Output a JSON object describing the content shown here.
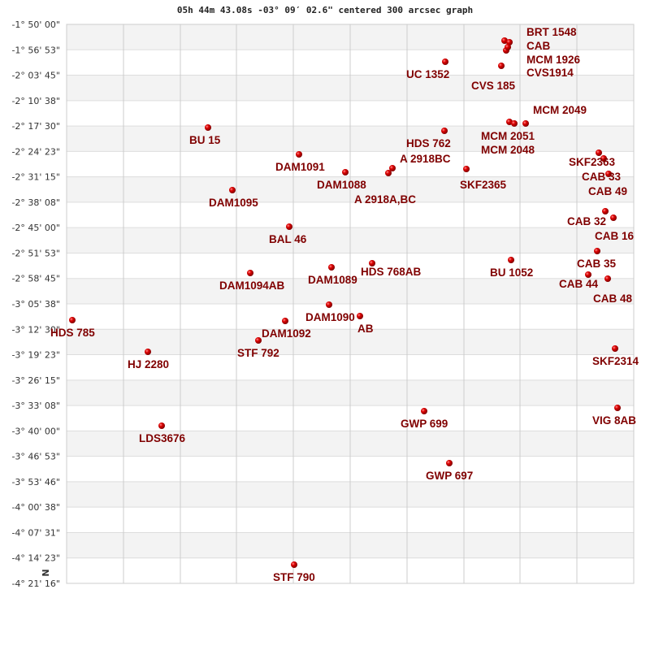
{
  "chart_data": {
    "type": "scatter",
    "title": "05h 44m 43.08s -03° 09′ 02.6\" centered 300 arcsec graph",
    "y_tick_labels": [
      "-1° 50' 00\"",
      "-1° 56' 53\"",
      "-2° 03' 45\"",
      "-2° 10' 38\"",
      "-2° 17' 30\"",
      "-2° 24' 23\"",
      "-2° 31' 15\"",
      "-2° 38' 08\"",
      "-2° 45' 00\"",
      "-2° 51' 53\"",
      "-2° 58' 45\"",
      "-3° 05' 38\"",
      "-3° 12' 30\"",
      "-3° 19' 23\"",
      "-3° 26' 15\"",
      "-3° 33' 08\"",
      "-3° 40' 00\"",
      "-3° 46' 53\"",
      "-3° 53' 46\"",
      "-4° 00' 38\"",
      "-4° 07' 31\"",
      "-4° 14' 23\"",
      "-4° 21' 16\""
    ],
    "compass_label": "N",
    "grid": true,
    "point_color": "#dd0000",
    "label_color": "#800000",
    "stars": [
      "BU  15",
      "DAM1091",
      "DAM1095",
      "BAL  46",
      "DAM1094AB",
      "DAM1089",
      "HDS 768AB",
      "DAM1090",
      "AB",
      "DAM1092",
      "STF 792",
      "HDS 785",
      "HJ 2280",
      "LDS3676",
      "STF 790",
      "GWP 699",
      "GWP 697",
      "UC 1352",
      "HDS 762",
      "SKF2365",
      "DAM1088",
      "A 2918A,BC",
      "A 2918BC",
      "BU 1052",
      "SKF2363",
      "CAB  33",
      "CAB  49",
      "CAB  32",
      "CAB  16",
      "CAB  35",
      "CAB  44",
      "CAB  48",
      "SKF2314",
      "VIG  8AB",
      "CVS 185",
      "CVS1914",
      "BRT 1548",
      "CAB",
      "MCM 1926",
      "MCM 2051",
      "MCM 2048",
      "MCM 2049"
    ]
  }
}
